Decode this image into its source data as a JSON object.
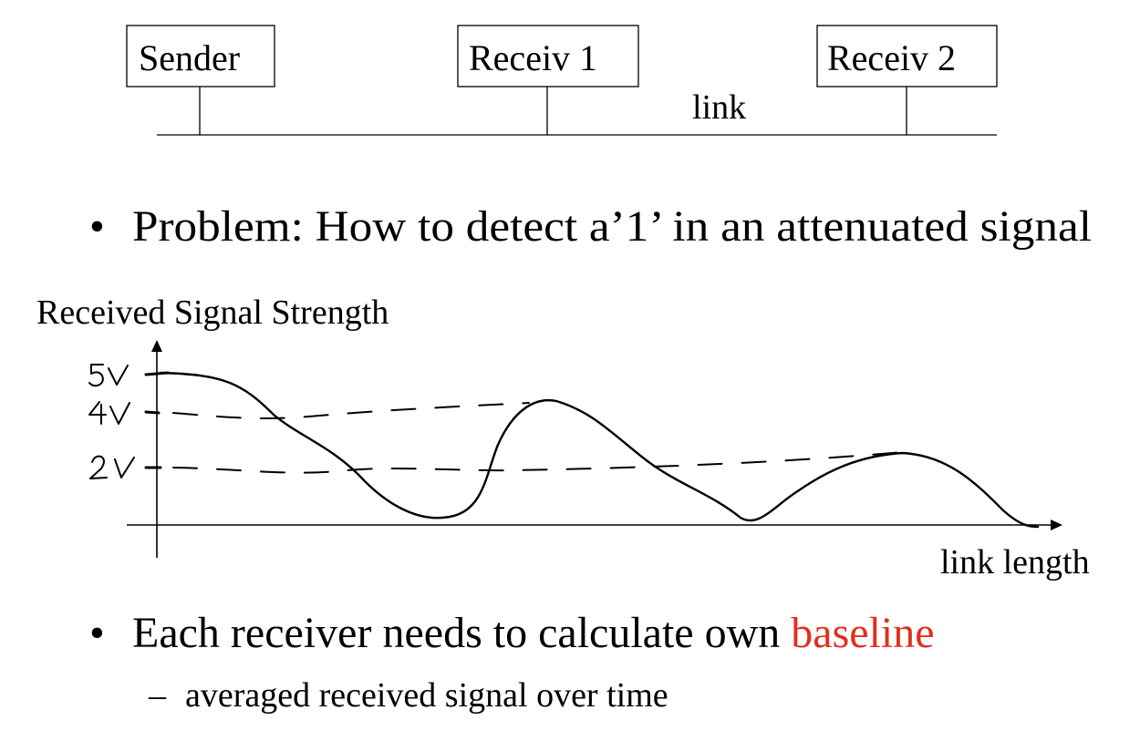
{
  "network": {
    "nodes": [
      {
        "label": "Sender"
      },
      {
        "label": "Receiv 1"
      },
      {
        "label": "Receiv 2"
      }
    ],
    "link_label": "link"
  },
  "bullets": [
    {
      "marker": "•",
      "text": "Problem: How to detect a’1’ in an attenuated signal"
    },
    {
      "marker": "•",
      "text_before": "Each receiver needs to calculate own ",
      "highlight": "baseline",
      "highlight_color": "#e0301e"
    }
  ],
  "sub_bullets": [
    {
      "marker": "–",
      "text": "averaged received signal over time"
    }
  ],
  "plot": {
    "y_axis_title": "Received Signal Strength",
    "x_axis_title": "link length",
    "levels": [
      "5V",
      "4V",
      "2V"
    ],
    "line_style": "hand-drawn"
  }
}
